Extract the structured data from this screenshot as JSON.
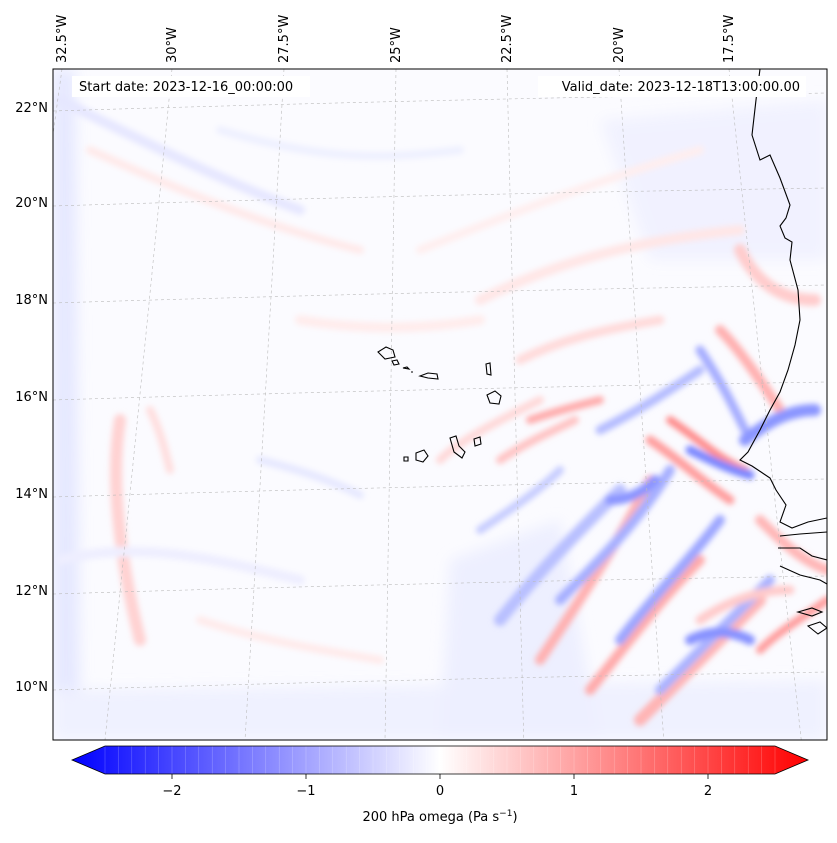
{
  "map": {
    "start_label": "Start date: 2023-12-16_00:00:00",
    "valid_label": "Valid_date: 2023-12-18T13:00:00.00",
    "lon_ticks": [
      "32.5°W",
      "30°W",
      "27.5°W",
      "25°W",
      "22.5°W",
      "20°W",
      "17.5°W"
    ],
    "lat_ticks": [
      "22°N",
      "20°N",
      "18°N",
      "16°N",
      "14°N",
      "12°N",
      "10°N"
    ],
    "colorbar": {
      "label_main": "200 hPa omega (Pa s",
      "label_exp": "−1",
      "label_close": ")",
      "ticks": [
        "−2",
        "−1",
        "0",
        "1",
        "2"
      ],
      "colors": {
        "negative": "#0000ff",
        "neutral": "#ffffff",
        "positive": "#ff0000"
      }
    }
  }
}
